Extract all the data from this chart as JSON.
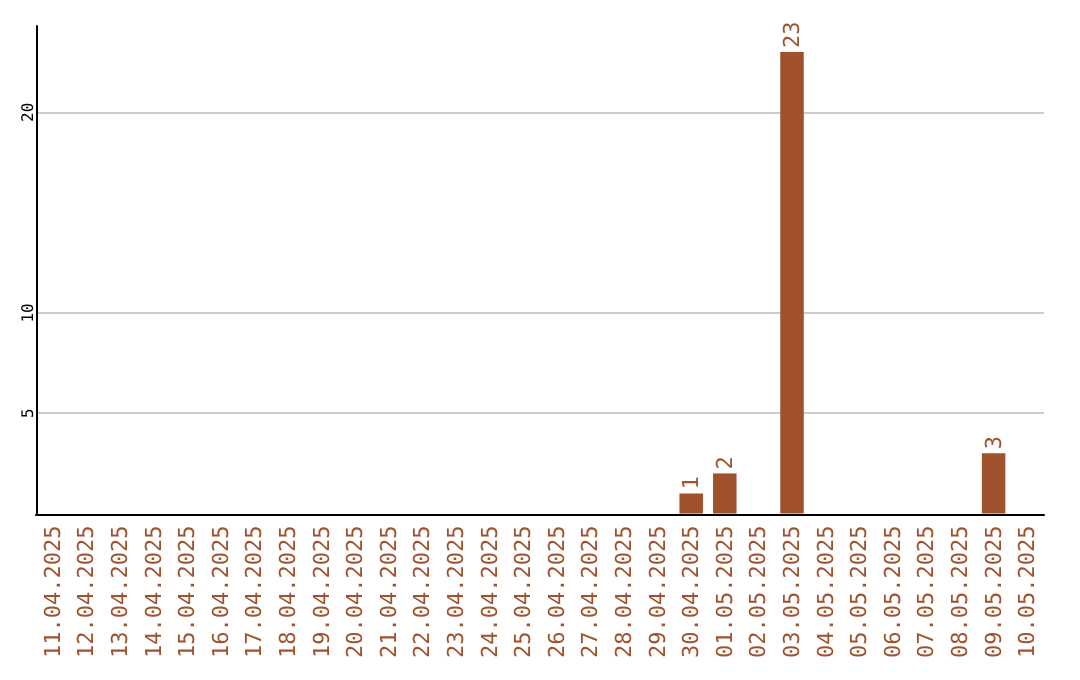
{
  "chart_data": {
    "type": "bar",
    "categories": [
      "11.04.2025",
      "12.04.2025",
      "13.04.2025",
      "14.04.2025",
      "15.04.2025",
      "16.04.2025",
      "17.04.2025",
      "18.04.2025",
      "19.04.2025",
      "20.04.2025",
      "21.04.2025",
      "22.04.2025",
      "23.04.2025",
      "24.04.2025",
      "25.04.2025",
      "26.04.2025",
      "27.04.2025",
      "28.04.2025",
      "29.04.2025",
      "30.04.2025",
      "01.05.2025",
      "02.05.2025",
      "03.05.2025",
      "04.05.2025",
      "05.05.2025",
      "06.05.2025",
      "07.05.2025",
      "08.05.2025",
      "09.05.2025",
      "10.05.2025"
    ],
    "values": [
      0,
      0,
      0,
      0,
      0,
      0,
      0,
      0,
      0,
      0,
      0,
      0,
      0,
      0,
      0,
      0,
      0,
      0,
      0,
      1,
      2,
      0,
      23,
      0,
      0,
      0,
      0,
      0,
      3,
      0
    ],
    "value_labels": [
      null,
      null,
      null,
      null,
      null,
      null,
      null,
      null,
      null,
      null,
      null,
      null,
      null,
      null,
      null,
      null,
      null,
      null,
      null,
      "1",
      "2",
      null,
      "23",
      null,
      null,
      null,
      null,
      null,
      "3",
      null
    ],
    "color": "#a0522d",
    "ylim": [
      0,
      24.3
    ],
    "yticks": [
      5,
      10,
      20
    ],
    "grid": "y"
  }
}
